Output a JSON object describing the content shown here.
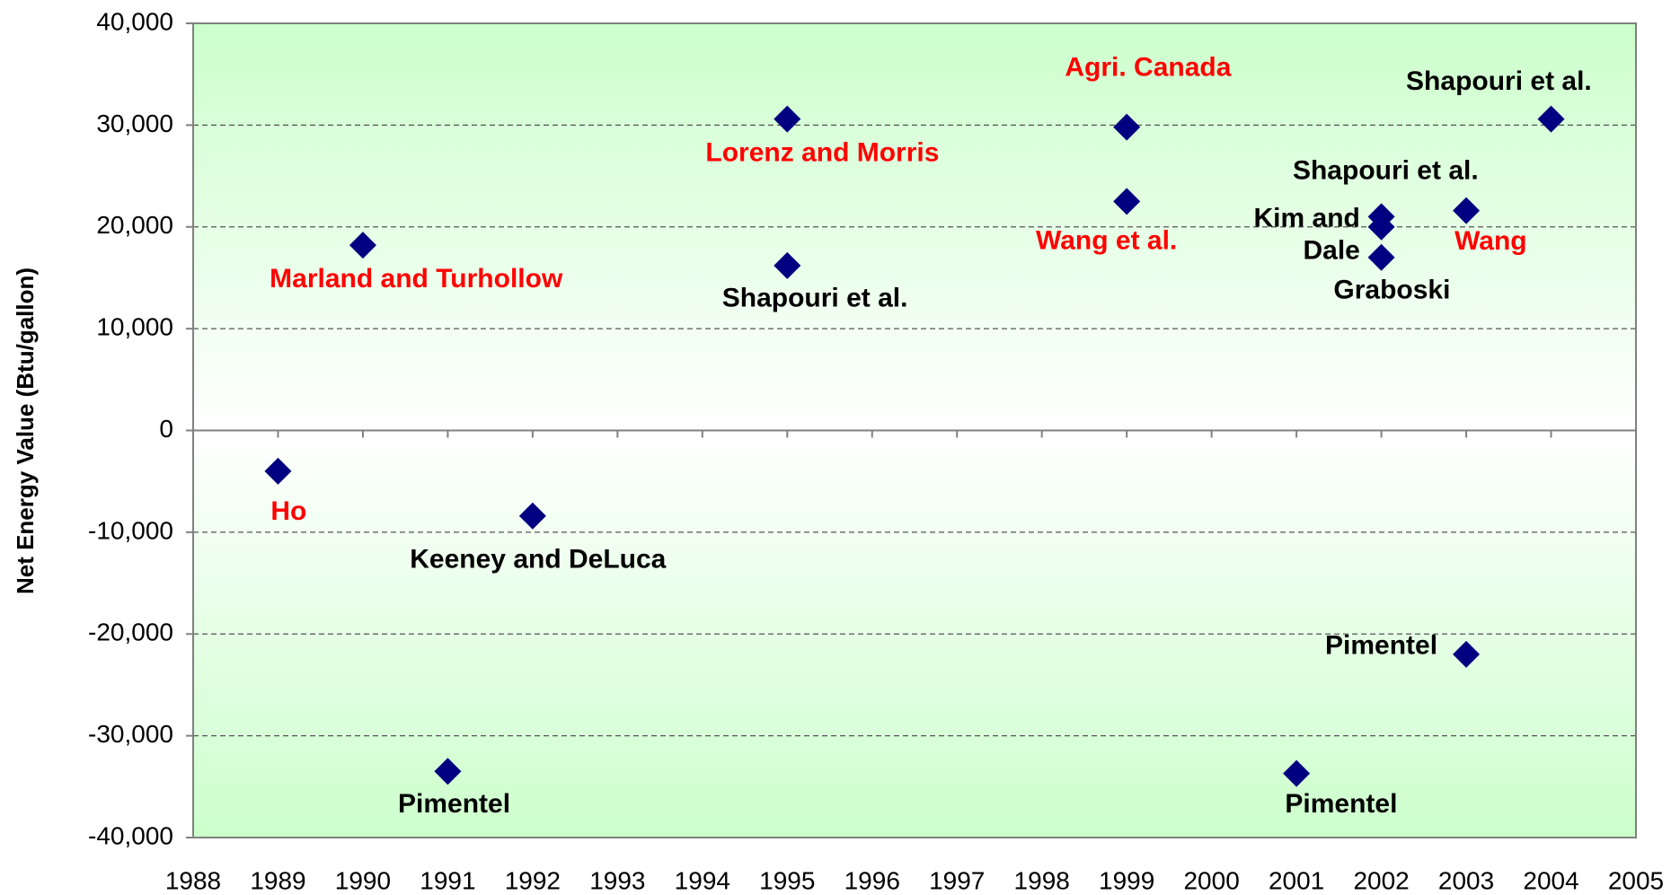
{
  "chart_data": {
    "type": "scatter",
    "y_label": "Net Energy Value (Btu/gallon)",
    "marker_color": "#000080",
    "xlim": [
      1988,
      2005
    ],
    "ylim": [
      -40000,
      40000
    ],
    "xticks": [
      1988,
      1989,
      1990,
      1991,
      1992,
      1993,
      1994,
      1995,
      1996,
      1997,
      1998,
      1999,
      2000,
      2001,
      2002,
      2003,
      2004,
      2005
    ],
    "yticks": [
      {
        "value": -40000,
        "label": "-40,000"
      },
      {
        "value": -30000,
        "label": "-30,000"
      },
      {
        "value": -20000,
        "label": "-20,000"
      },
      {
        "value": -10000,
        "label": "-10,000"
      },
      0,
      {
        "value": 10000,
        "label": "10,000"
      },
      {
        "value": 20000,
        "label": "20,000"
      },
      {
        "value": 30000,
        "label": "30,000"
      },
      {
        "value": 40000,
        "label": "40,000"
      }
    ],
    "grid": true,
    "points": [
      {
        "x": 1989,
        "y": -4000,
        "label": [
          "Ho"
        ],
        "color": "#ff0000"
      },
      {
        "x": 1990,
        "y": 18200,
        "label": [
          "Marland and Turhollow"
        ],
        "color": "#ff0000"
      },
      {
        "x": 1991,
        "y": -33500,
        "label": [
          "Pimentel"
        ],
        "color": "#000000"
      },
      {
        "x": 1992,
        "y": -8400,
        "label": [
          "Keeney and DeLuca"
        ],
        "color": "#000000"
      },
      {
        "x": 1995,
        "y": 30600,
        "label": [
          "Lorenz and Morris"
        ],
        "color": "#ff0000"
      },
      {
        "x": 1995,
        "y": 16200,
        "label": [
          "Shapouri et al."
        ],
        "color": "#000000"
      },
      {
        "x": 1999,
        "y": 29800,
        "label": [
          "Agri. Canada"
        ],
        "color": "#ff0000"
      },
      {
        "x": 1999,
        "y": 22500,
        "label": [
          "Wang et al."
        ],
        "color": "#ff0000"
      },
      {
        "x": 2001,
        "y": -33700,
        "label": [
          "Pimentel"
        ],
        "color": "#000000"
      },
      {
        "x": 2002,
        "y": 21000,
        "label": [
          "Shapouri et al."
        ],
        "color": "#000000"
      },
      {
        "x": 2002,
        "y": 20000,
        "label": [
          "Kim and",
          "Dale"
        ],
        "color": "#000000"
      },
      {
        "x": 2002,
        "y": 17000,
        "label": [
          "Graboski"
        ],
        "color": "#000000"
      },
      {
        "x": 2003,
        "y": 21600,
        "label": [
          "Wang"
        ],
        "color": "#ff0000"
      },
      {
        "x": 2003,
        "y": -22000,
        "label": [
          "Pimentel"
        ],
        "color": "#000000"
      },
      {
        "x": 2004,
        "y": 30600,
        "label": [
          "Shapouri et al."
        ],
        "color": "#000000"
      }
    ]
  }
}
